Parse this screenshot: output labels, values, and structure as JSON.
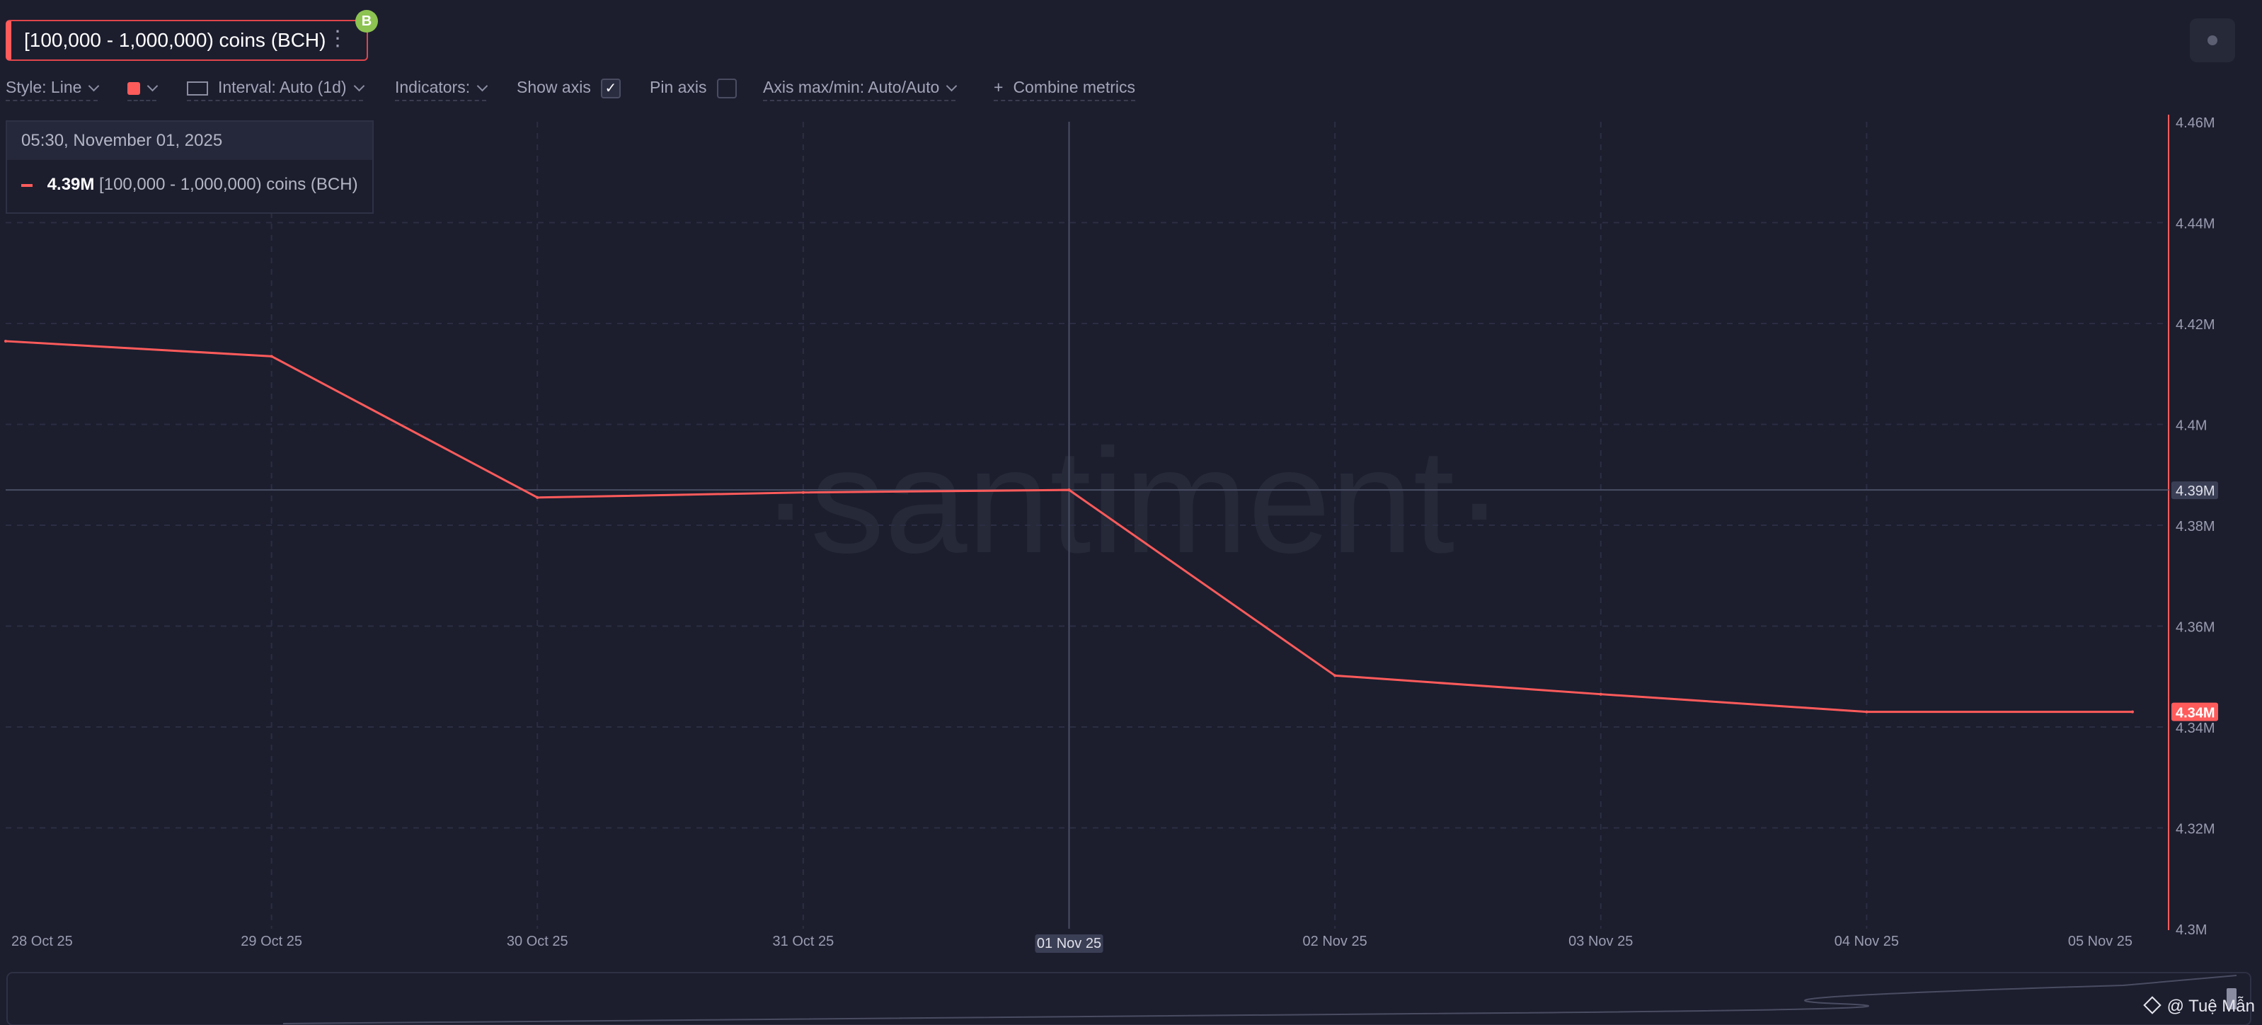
{
  "metric": {
    "label": "[100,000 - 1,000,000) coins (BCH)",
    "menu": "⋮",
    "badge": "B"
  },
  "toolbar": {
    "style": "Style: Line",
    "color": "#ff5b5b",
    "interval": "Interval: Auto (1d)",
    "indicators": "Indicators:",
    "show_axis": "Show axis",
    "show_axis_checked": "✓",
    "pin_axis": "Pin axis",
    "axis_maxmin": "Axis max/min: Auto/Auto",
    "combine": "Combine metrics"
  },
  "tooltip": {
    "date": "05:30, November 01, 2025",
    "value": "4.39M",
    "name": "[100,000  - 1,000,000) coins (BCH)"
  },
  "watermark": "·santiment·",
  "credit": "@ Tuệ Mẫn",
  "chart_data": {
    "type": "line",
    "x": [
      "28 Oct 25",
      "29 Oct 25",
      "30 Oct 25",
      "31 Oct 25",
      "01 Nov 25",
      "02 Nov 25",
      "03 Nov 25",
      "04 Nov 25",
      "05 Nov 25"
    ],
    "series": [
      {
        "values": [
          4.4165,
          4.4135,
          4.3855,
          4.3865,
          4.387,
          4.3502,
          4.3465,
          4.343,
          4.343
        ],
        "color": "#ff5b5b"
      }
    ],
    "ylim": [
      4.3,
      4.46
    ],
    "y_ticks": [
      "4.3M",
      "4.32M",
      "4.34M",
      "4.36M",
      "4.38M",
      "4.4M",
      "4.42M",
      "4.44M",
      "4.46M"
    ],
    "crosshair_x_label": "01 Nov 25",
    "crosshair_y_label": "4.39M",
    "last_value_label": "4.34M",
    "grid": true
  }
}
